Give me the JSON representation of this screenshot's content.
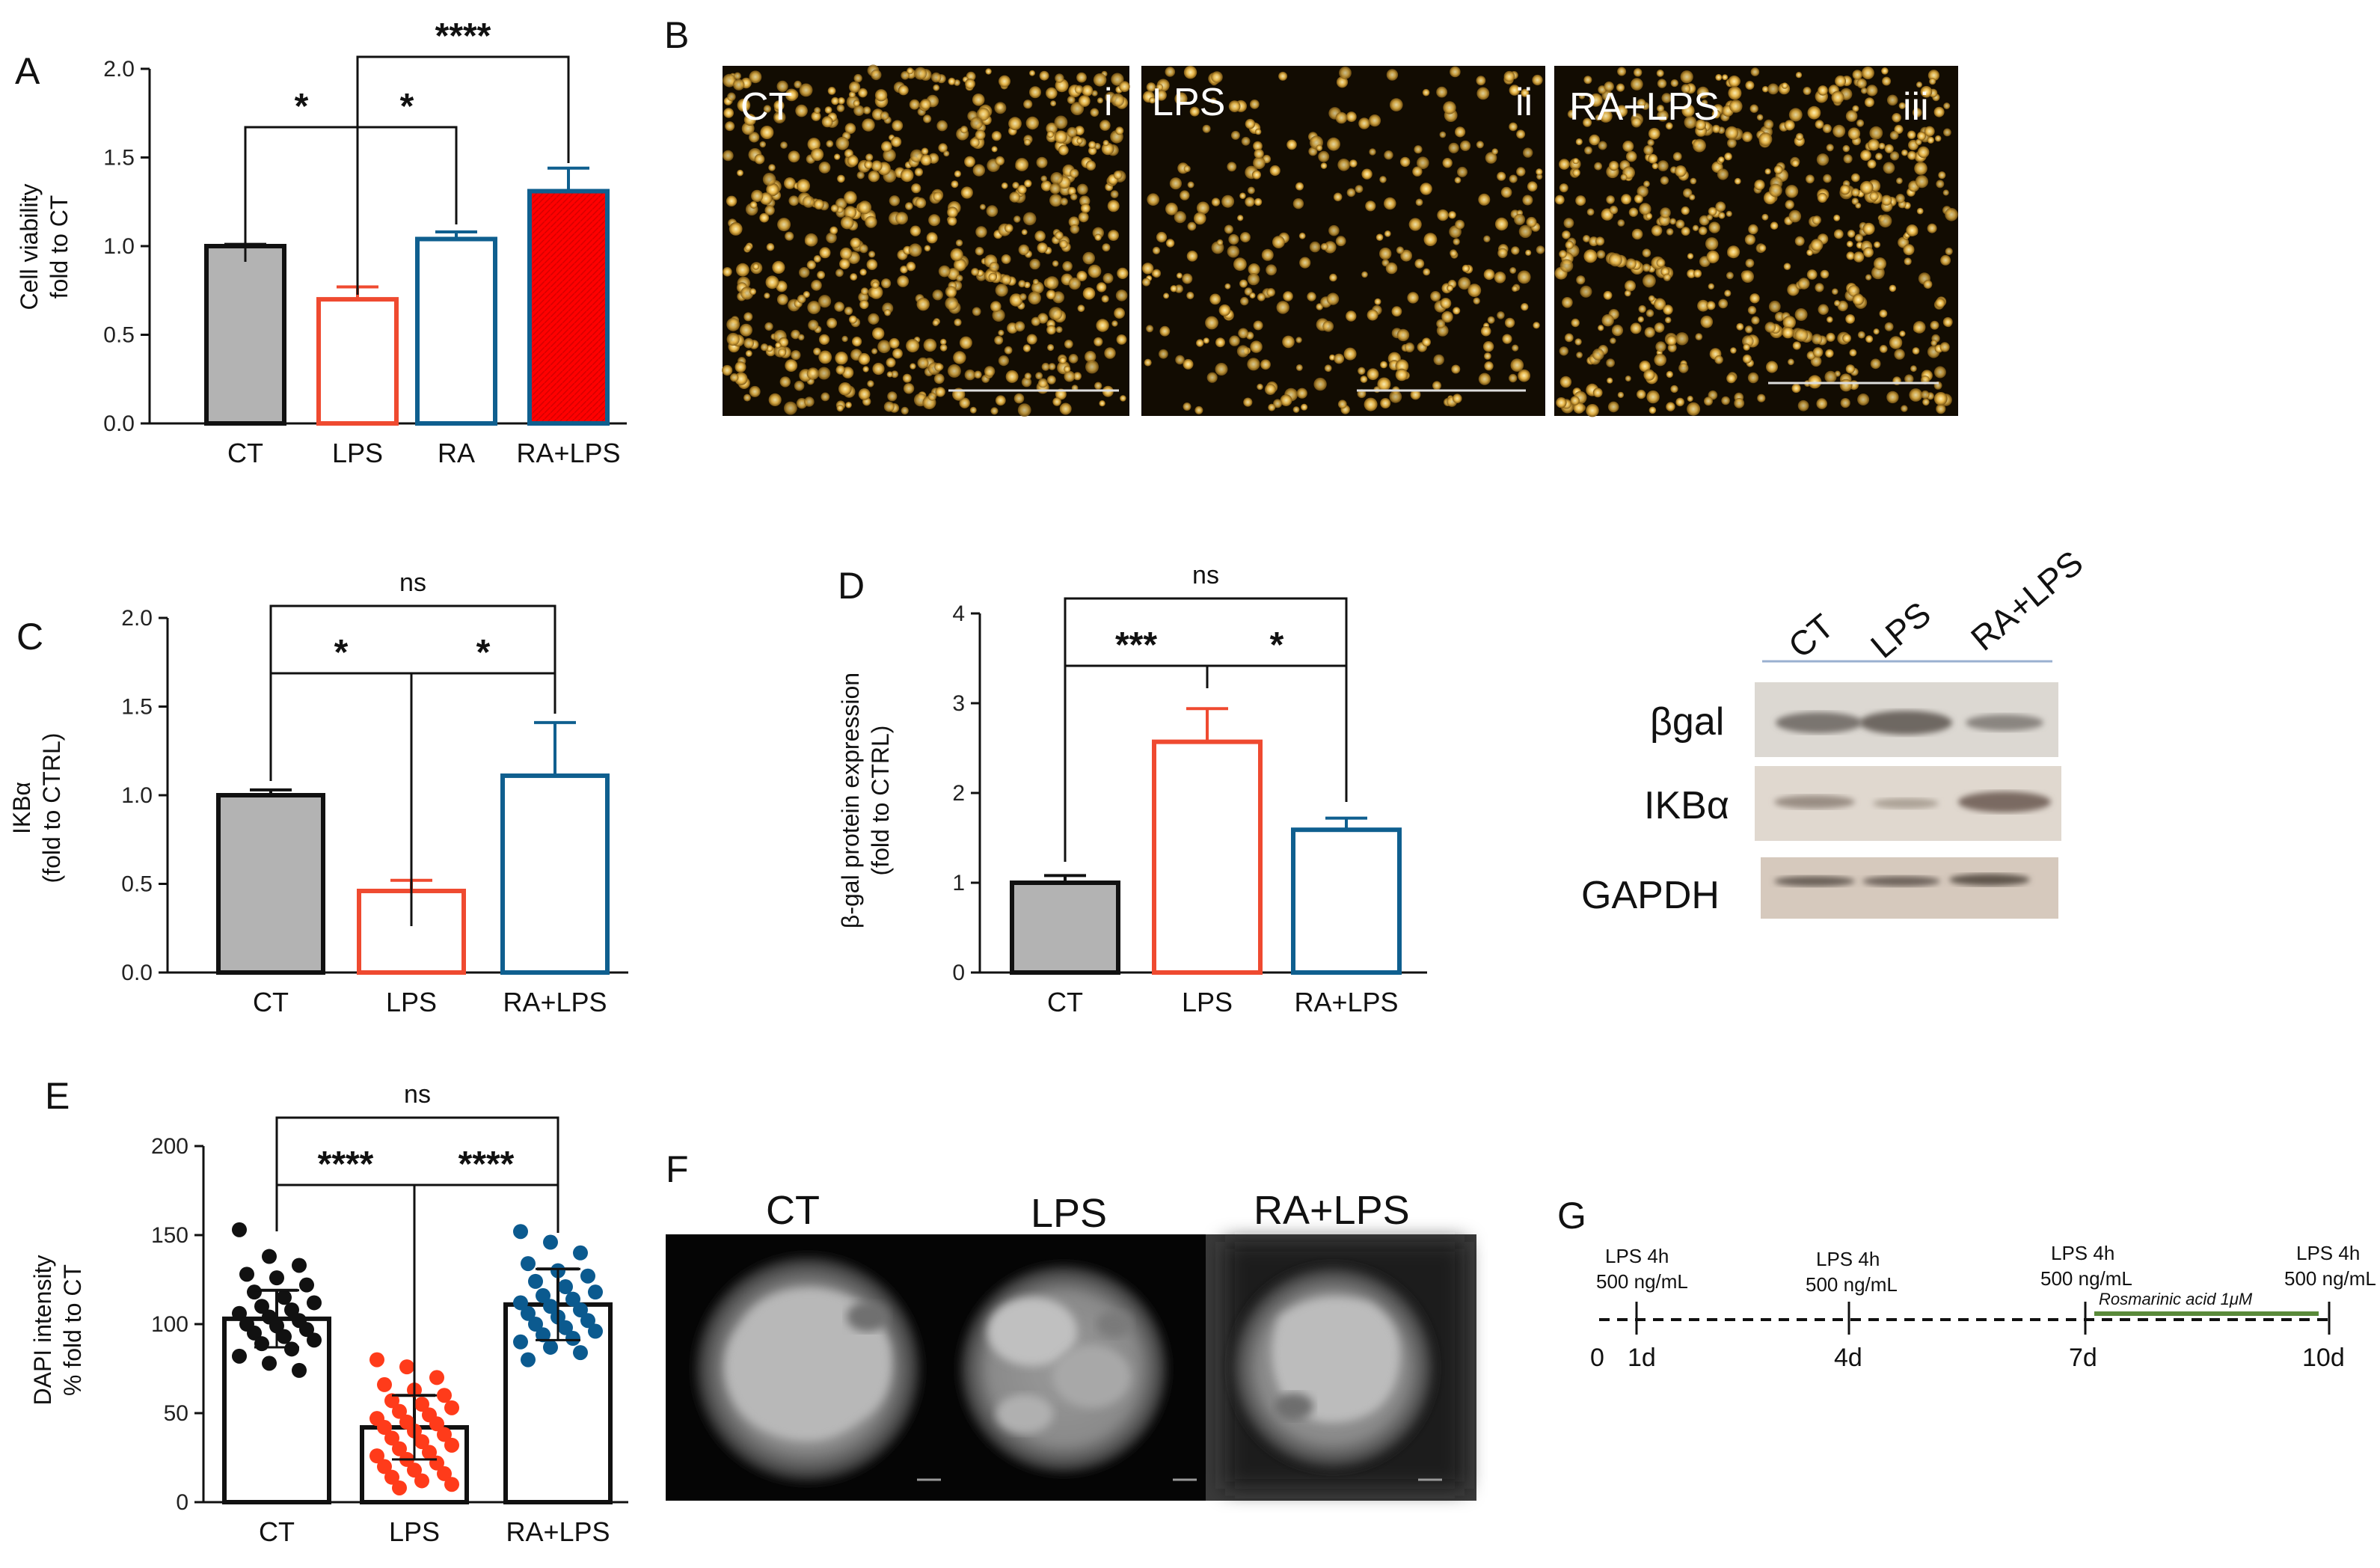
{
  "panels": {
    "A": "A",
    "B": "B",
    "C": "C",
    "D": "D",
    "E": "E",
    "F": "F",
    "G": "G"
  },
  "colors": {
    "CT_fill": "#b3b3b3",
    "LPS": "#ef4a30",
    "RA": "#0f5f8f",
    "RA_LPS_fill": "#ff0000",
    "dots_CT": "#111111",
    "dots_LPS": "#ff3b1a",
    "dots_RA_LPS": "#0b5a8f"
  },
  "chart_data": [
    {
      "id": "A",
      "type": "bar",
      "categories": [
        "CT",
        "LPS",
        "RA",
        "RA+LPS"
      ],
      "values": [
        1.0,
        0.7,
        1.04,
        1.31
      ],
      "errors": [
        0.01,
        0.07,
        0.04,
        0.13
      ],
      "ylabel_line1": "Cell viability",
      "ylabel_line2": "fold to CT",
      "ylim": [
        0,
        2.0
      ],
      "yticks": [
        "0.0",
        "0.5",
        "1.0",
        "1.5",
        "2.0"
      ],
      "significance": [
        {
          "from": "CT",
          "to": "LPS",
          "label": "*"
        },
        {
          "from": "LPS",
          "to": "RA",
          "label": "*"
        },
        {
          "from": "LPS",
          "to": "RA+LPS",
          "label": "****"
        }
      ]
    },
    {
      "id": "C",
      "type": "bar",
      "categories": [
        "CT",
        "LPS",
        "RA+LPS"
      ],
      "values": [
        1.0,
        0.46,
        1.11
      ],
      "errors": [
        0.03,
        0.06,
        0.3
      ],
      "ylabel_line1": "IKBα",
      "ylabel_line2": "(fold to CTRL)",
      "ylim": [
        0,
        2.0
      ],
      "yticks": [
        "0.0",
        "0.5",
        "1.0",
        "1.5",
        "2.0"
      ],
      "significance": [
        {
          "from": "CT",
          "to": "LPS",
          "label": "*"
        },
        {
          "from": "LPS",
          "to": "RA+LPS",
          "label": "*"
        },
        {
          "from": "CT",
          "to": "RA+LPS",
          "label": "ns"
        }
      ]
    },
    {
      "id": "D",
      "type": "bar",
      "categories": [
        "CT",
        "LPS",
        "RA+LPS"
      ],
      "values": [
        1.0,
        2.57,
        1.59
      ],
      "errors": [
        0.08,
        0.37,
        0.13
      ],
      "ylabel_line1": "β-gal protein expression",
      "ylabel_line2": "(fold to CTRL)",
      "ylim": [
        0,
        4
      ],
      "yticks": [
        "0",
        "1",
        "2",
        "3",
        "4"
      ],
      "significance": [
        {
          "from": "CT",
          "to": "LPS",
          "label": "***"
        },
        {
          "from": "LPS",
          "to": "RA+LPS",
          "label": "*"
        },
        {
          "from": "CT",
          "to": "RA+LPS",
          "label": "ns"
        }
      ]
    },
    {
      "id": "E",
      "type": "scatter",
      "categories": [
        "CT",
        "LPS",
        "RA+LPS"
      ],
      "values": [
        103,
        42,
        111
      ],
      "errors": [
        16,
        18,
        20
      ],
      "points": [
        [
          153,
          138,
          133,
          128,
          126,
          122,
          118,
          115,
          112,
          110,
          108,
          106,
          104,
          102,
          100,
          99,
          97,
          95,
          93,
          91,
          89,
          86,
          82,
          78,
          74
        ],
        [
          80,
          76,
          70,
          66,
          63,
          60,
          57,
          55,
          53,
          51,
          49,
          47,
          45,
          44,
          42,
          40,
          38,
          36,
          34,
          32,
          30,
          28,
          26,
          24,
          22,
          20,
          18,
          16,
          14,
          12,
          10,
          8
        ],
        [
          152,
          146,
          140,
          134,
          130,
          127,
          124,
          121,
          118,
          116,
          114,
          112,
          110,
          108,
          106,
          104,
          102,
          100,
          98,
          96,
          94,
          92,
          90,
          87,
          84,
          80
        ]
      ],
      "ylabel_line1": "DAPI intensity",
      "ylabel_line2": "% fold to CT",
      "ylim": [
        0,
        200
      ],
      "yticks": [
        "0",
        "50",
        "100",
        "150",
        "200"
      ],
      "significance": [
        {
          "from": "CT",
          "to": "LPS",
          "label": "****"
        },
        {
          "from": "LPS",
          "to": "RA+LPS",
          "label": "****"
        },
        {
          "from": "CT",
          "to": "RA+LPS",
          "label": "ns"
        }
      ]
    }
  ],
  "micrographs": [
    {
      "label": "CT",
      "roman": "i"
    },
    {
      "label": "LPS",
      "roman": "ii"
    },
    {
      "label": "RA+LPS",
      "roman": "iii"
    }
  ],
  "western_blot": {
    "columns": [
      "CT",
      "LPS",
      "RA+LPS"
    ],
    "rows": [
      "βgal",
      "IKBα",
      "GAPDH"
    ]
  },
  "nuclei": [
    "CT",
    "LPS",
    "RA+LPS"
  ],
  "timeline": {
    "ticks": [
      {
        "day": "0"
      },
      {
        "day": "1d",
        "line1": "LPS 4h",
        "line2": "500 ng/mL"
      },
      {
        "day": "4d",
        "line1": "LPS 4h",
        "line2": "500 ng/mL"
      },
      {
        "day": "7d",
        "line1": "LPS 4h",
        "line2": "500 ng/mL"
      },
      {
        "day": "10d",
        "line1": "LPS 4h",
        "line2": "500 ng/mL"
      }
    ],
    "treatment": "Rosmarinic acid 1μM"
  }
}
